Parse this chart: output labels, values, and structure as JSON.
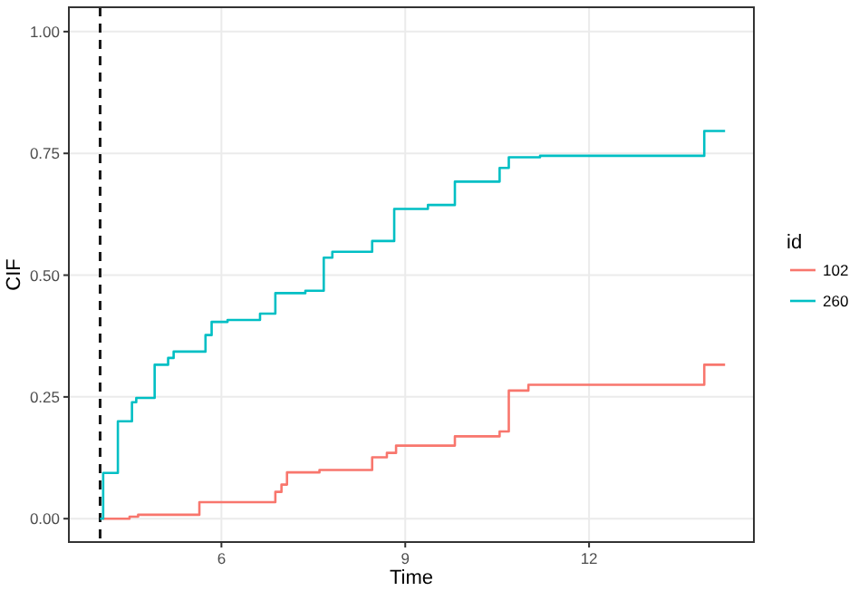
{
  "chart_data": {
    "type": "step",
    "xlabel": "Time",
    "ylabel": "CIF",
    "legend_title": "id",
    "xlim": [
      3.51,
      14.69
    ],
    "ylim": [
      -0.048,
      1.05
    ],
    "xticks": [
      6,
      9,
      12
    ],
    "yticks": [
      {
        "value": 0,
        "label": "0.00"
      },
      {
        "value": 0.25,
        "label": "0.25"
      },
      {
        "value": 0.5,
        "label": "0.50"
      },
      {
        "value": 0.75,
        "label": "0.75"
      },
      {
        "value": 1,
        "label": "1.00"
      }
    ],
    "grid": true,
    "legend": "right",
    "line_style": "solid",
    "ref_lines": [
      {
        "axis": "x",
        "value": 4.02,
        "label": null,
        "color": "#1a1a1a",
        "line_style": "dashed"
      }
    ],
    "series": [
      {
        "name": "102",
        "color": "#f8766d",
        "x": [
          4.07,
          4.5,
          4.64,
          5.64,
          6.88,
          6.98,
          7.07,
          7.6,
          8.46,
          8.7,
          8.85,
          9.81,
          10.54,
          10.69,
          11.01,
          13.88,
          14.22
        ],
        "values": [
          0,
          0.004,
          0.008,
          0.034,
          0.055,
          0.07,
          0.095,
          0.1,
          0.126,
          0.135,
          0.15,
          0.169,
          0.179,
          0.263,
          0.275,
          0.316,
          0.316
        ]
      },
      {
        "name": "260",
        "color": "#00bfc4",
        "x": [
          4.02,
          4.07,
          4.31,
          4.54,
          4.61,
          4.91,
          5.13,
          5.22,
          5.74,
          5.84,
          6.1,
          6.63,
          6.88,
          7.37,
          7.67,
          7.81,
          8.46,
          8.82,
          9.37,
          9.81,
          10.54,
          10.69,
          11.2,
          13.88,
          14.22
        ],
        "values": [
          0,
          0.094,
          0.2,
          0.239,
          0.248,
          0.316,
          0.33,
          0.343,
          0.377,
          0.404,
          0.408,
          0.421,
          0.463,
          0.468,
          0.536,
          0.548,
          0.57,
          0.636,
          0.644,
          0.692,
          0.72,
          0.742,
          0.745,
          0.796,
          0.796
        ]
      }
    ]
  }
}
